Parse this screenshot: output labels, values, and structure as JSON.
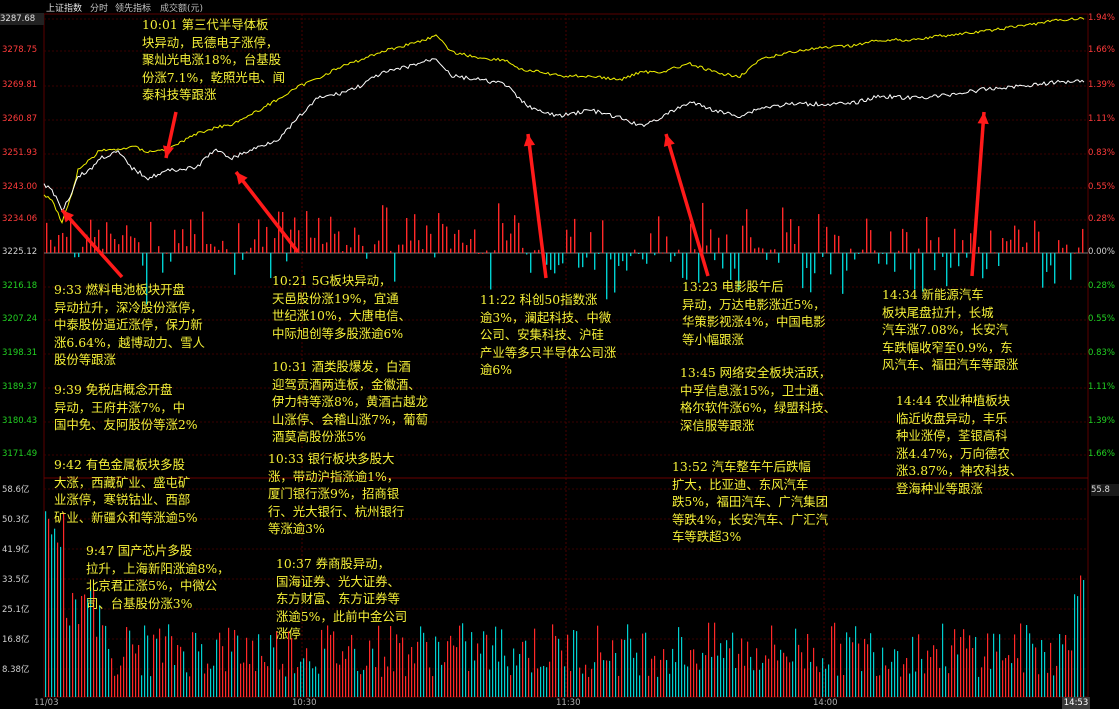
{
  "tabs": [
    {
      "label": "上证指数",
      "active": true
    },
    {
      "label": "分时",
      "active": false
    },
    {
      "label": "领先指标",
      "active": false
    },
    {
      "label": "成交额(元)",
      "active": false
    }
  ],
  "price_axis": {
    "left_labels": [
      "3287.68",
      "3278.75",
      "3269.81",
      "3260.87",
      "3251.93",
      "3243.00",
      "3234.06",
      "3225.12",
      "3216.18",
      "3207.24",
      "3198.31",
      "3189.37",
      "3180.43",
      "3171.49"
    ],
    "right_labels": [
      "1.94%",
      "1.66%",
      "1.39%",
      "1.11%",
      "0.83%",
      "0.55%",
      "0.28%",
      "0.00%",
      "0.28%",
      "0.55%",
      "0.83%",
      "1.11%",
      "1.39%",
      "1.66%"
    ]
  },
  "volume_axis": {
    "left_labels": [
      "58.6亿",
      "50.3亿",
      "41.9亿",
      "33.5亿",
      "25.1亿",
      "16.8亿",
      "8.38亿"
    ],
    "current_label": "55.8"
  },
  "time_axis": {
    "labels": [
      "11/03",
      "10:30",
      "11:30",
      "14:00"
    ],
    "current_time": "14:53"
  },
  "colors": {
    "up": "#ff2828",
    "down": "#00d0d0",
    "index_line": "#ffffff",
    "leading_line": "#f0f000",
    "annotation": "#f5f038",
    "arrow": "#ff1a1a",
    "grid": "#3a0000"
  },
  "annotations": [
    {
      "id": "a1001",
      "lines": [
        "10:01 第三代半导体板",
        "块异动，民德电子涨停，",
        "聚灿光电涨18%，台基股",
        "份涨7.1%，乾照光电、闻",
        "泰科技等跟涨"
      ]
    },
    {
      "id": "a933",
      "lines": [
        "9:33 燃料电池板块开盘",
        "异动拉升，深冷股份涨停，",
        "中泰股份逼近涨停，保力新",
        "涨6.64%，越博动力、雪人",
        "股份等跟涨"
      ]
    },
    {
      "id": "a939",
      "lines": [
        "9:39 免税店概念开盘",
        "异动，王府井涨7%，中",
        "国中免、友阿股份等涨2%"
      ]
    },
    {
      "id": "a942",
      "lines": [
        "9:42 有色金属板块多股",
        "大涨，西藏矿业、盛屯矿",
        "业涨停，寒锐钴业、西部",
        "矿业、新疆众和等涨逾5%"
      ]
    },
    {
      "id": "a947",
      "lines": [
        "9:47 国产芯片多股",
        "拉升，上海新阳涨逾8%，",
        "北京君正涨5%，中微公",
        "司、台基股份涨3%"
      ]
    },
    {
      "id": "a1021",
      "lines": [
        "10:21 5G板块异动，",
        "天邑股份涨19%，宜通",
        "世纪涨10%，大唐电信、",
        "中际旭创等多股涨逾6%"
      ]
    },
    {
      "id": "a1031",
      "lines": [
        "10:31 酒类股爆发，白酒",
        "迎驾贡酒两连板，金徽酒、",
        "伊力特等涨8%，黄酒古越龙",
        "山涨停、会稽山涨7%，葡萄",
        "酒莫高股份涨5%"
      ]
    },
    {
      "id": "a1033",
      "lines": [
        "10:33 银行板块多股大",
        "涨，带动沪指涨逾1%，",
        "厦门银行涨9%，招商银",
        "行、光大银行、杭州银行",
        "等涨逾3%"
      ]
    },
    {
      "id": "a1037",
      "lines": [
        "10:37 券商股异动，",
        "国海证券、光大证券、",
        "东方财富、东方证券等",
        "涨逾5%，此前中金公司",
        "涨停"
      ]
    },
    {
      "id": "a1122",
      "lines": [
        "11:22 科创50指数涨",
        "逾3%，澜起科技、中微",
        "公司、安集科技、沪硅",
        "产业等多只半导体公司涨",
        "逾6%"
      ]
    },
    {
      "id": "a1323",
      "lines": [
        "13:23 电影股午后",
        "异动，万达电影涨近5%，",
        "华策影视涨4%，中国电影",
        "等小幅跟涨"
      ]
    },
    {
      "id": "a1345",
      "lines": [
        "13:45 网络安全板块活跃，",
        "中孚信息涨15%，卫士通、",
        "格尔软件涨6%，绿盟科技、",
        "深信服等跟涨"
      ]
    },
    {
      "id": "a1352",
      "lines": [
        "13:52 汽车整车午后跌幅",
        "扩大，比亚迪、东风汽车",
        "跌5%，福田汽车、广汽集团",
        "等跌4%，长安汽车、广汇汽",
        "车等跌超3%"
      ]
    },
    {
      "id": "a1434",
      "lines": [
        "14:34 新能源汽车",
        "板块尾盘拉升，长城",
        "汽车涨7.08%，长安汽",
        "车跌幅收窄至0.9%，东",
        "风汽车、福田汽车等跟涨"
      ]
    },
    {
      "id": "a1444",
      "lines": [
        "14:44 农业种植板块",
        "临近收盘异动，丰乐",
        "种业涨停，荃银高科",
        "涨4.47%，万向德农",
        "涨3.87%，神农科技、",
        "登海种业等跟涨"
      ]
    }
  ]
}
